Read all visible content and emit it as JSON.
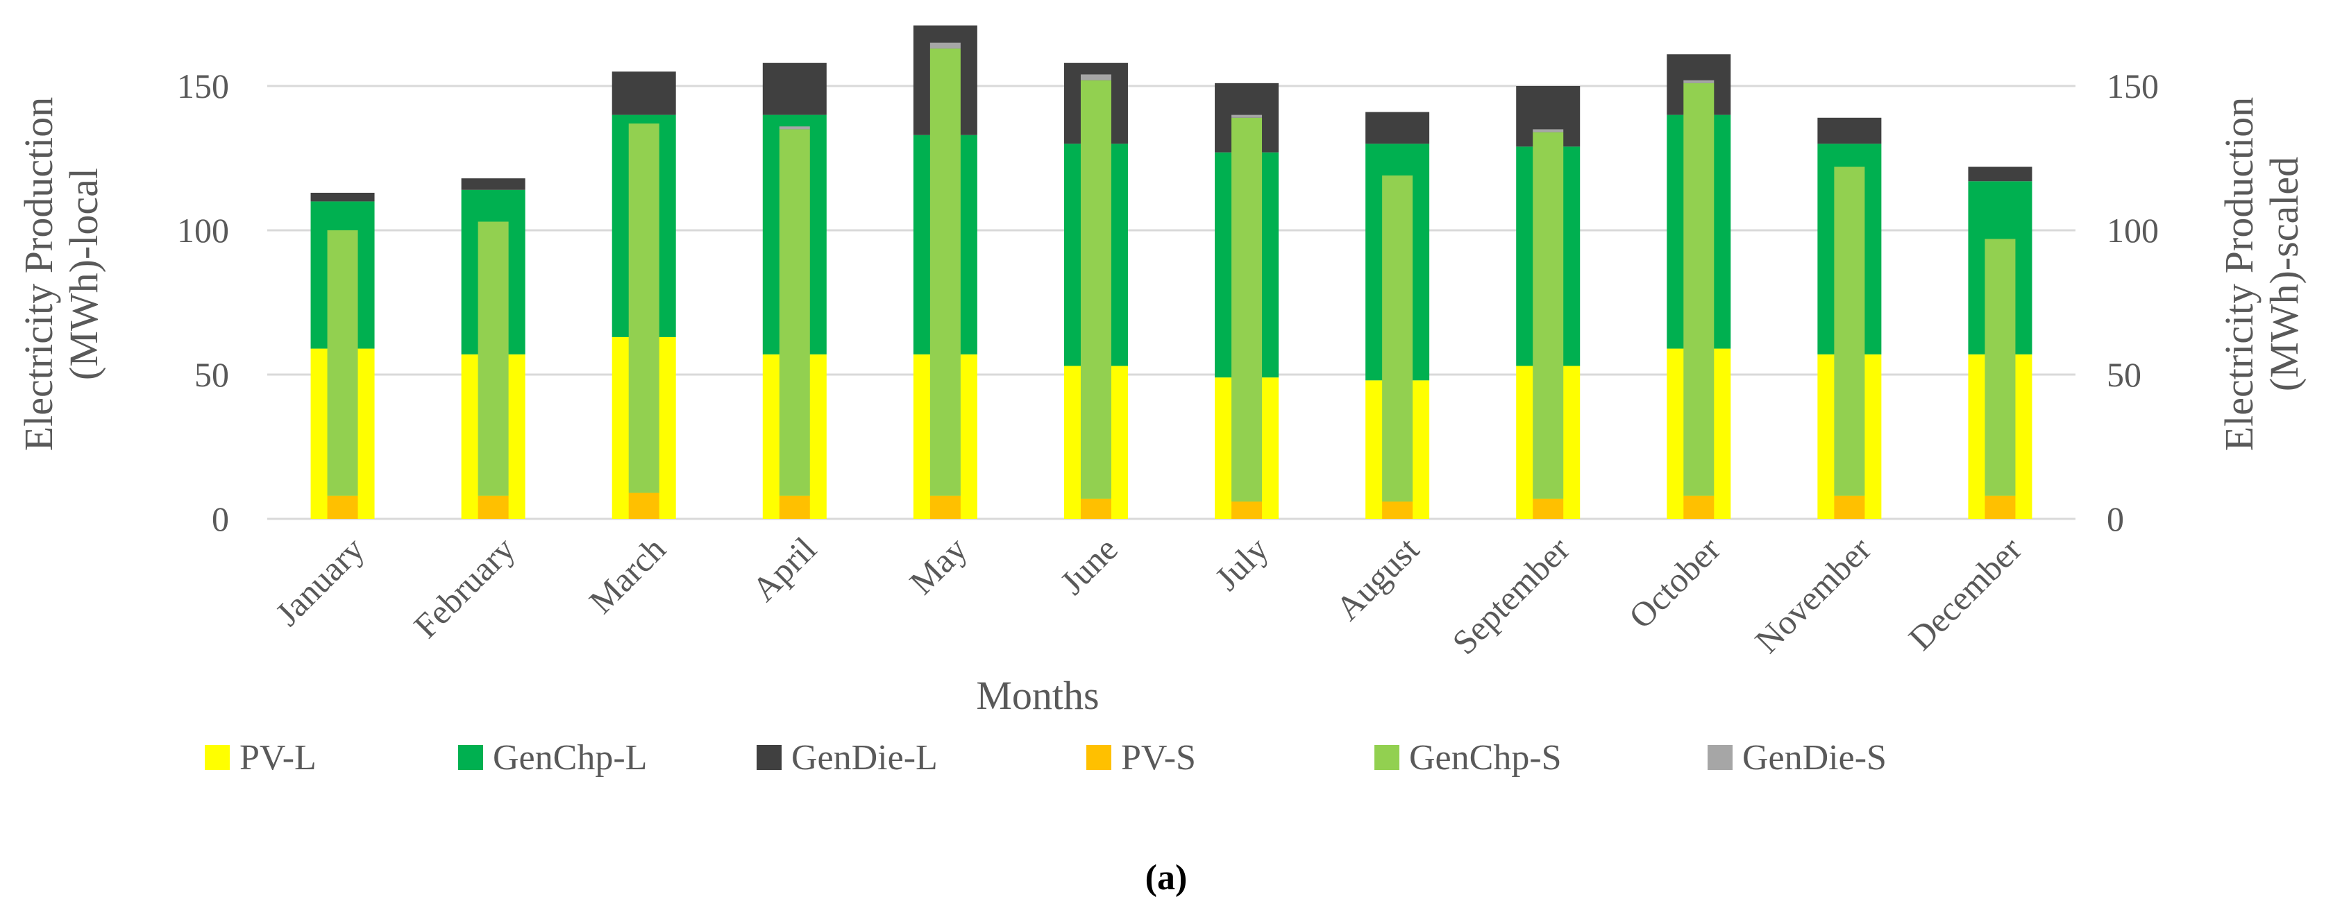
{
  "chart_data": {
    "type": "bar",
    "stacked": true,
    "categories": [
      "January",
      "February",
      "March",
      "April",
      "May",
      "June",
      "July",
      "August",
      "September",
      "October",
      "November",
      "December"
    ],
    "series_local": [
      {
        "name": "PV-L",
        "color": "#FFFF00",
        "values": [
          59,
          57,
          63,
          57,
          57,
          53,
          49,
          48,
          53,
          59,
          57,
          57
        ]
      },
      {
        "name": "GenChp-L",
        "color": "#00B050",
        "values": [
          51,
          57,
          77,
          83,
          76,
          77,
          78,
          82,
          76,
          81,
          73,
          60
        ]
      },
      {
        "name": "GenDie-L",
        "color": "#404040",
        "values": [
          3,
          4,
          15,
          18,
          38,
          28,
          24,
          11,
          21,
          21,
          9,
          5
        ]
      }
    ],
    "series_scaled": [
      {
        "name": "PV-S",
        "color": "#FFC000",
        "values": [
          8,
          8,
          9,
          8,
          8,
          7,
          6,
          6,
          7,
          8,
          8,
          8
        ]
      },
      {
        "name": "GenChp-S",
        "color": "#92D050",
        "values": [
          92,
          95,
          128,
          127,
          155,
          145,
          133,
          113,
          127,
          143,
          114,
          89
        ]
      },
      {
        "name": "GenDie-S",
        "color": "#A6A6A6",
        "values": [
          0,
          0,
          0,
          1,
          2,
          2,
          1,
          0,
          1,
          1,
          0,
          0
        ]
      }
    ],
    "y_left": {
      "label_line1": "Electricity Production",
      "label_line2": "(MWh)-local",
      "ticks": [
        0,
        50,
        100,
        150
      ],
      "ylim": [
        0,
        175
      ]
    },
    "y_right": {
      "label_line1": "Electricity Production",
      "label_line2": "(MWh)-scaled",
      "ticks": [
        0,
        50,
        100,
        150
      ],
      "ylim": [
        0,
        175
      ]
    },
    "xlabel": "Months",
    "legend": [
      "PV-L",
      "GenChp-L",
      "GenDie-L",
      "PV-S",
      "GenChp-S",
      "GenDie-S"
    ],
    "legend_position": "bottom",
    "grid": true,
    "caption": "(a)"
  }
}
